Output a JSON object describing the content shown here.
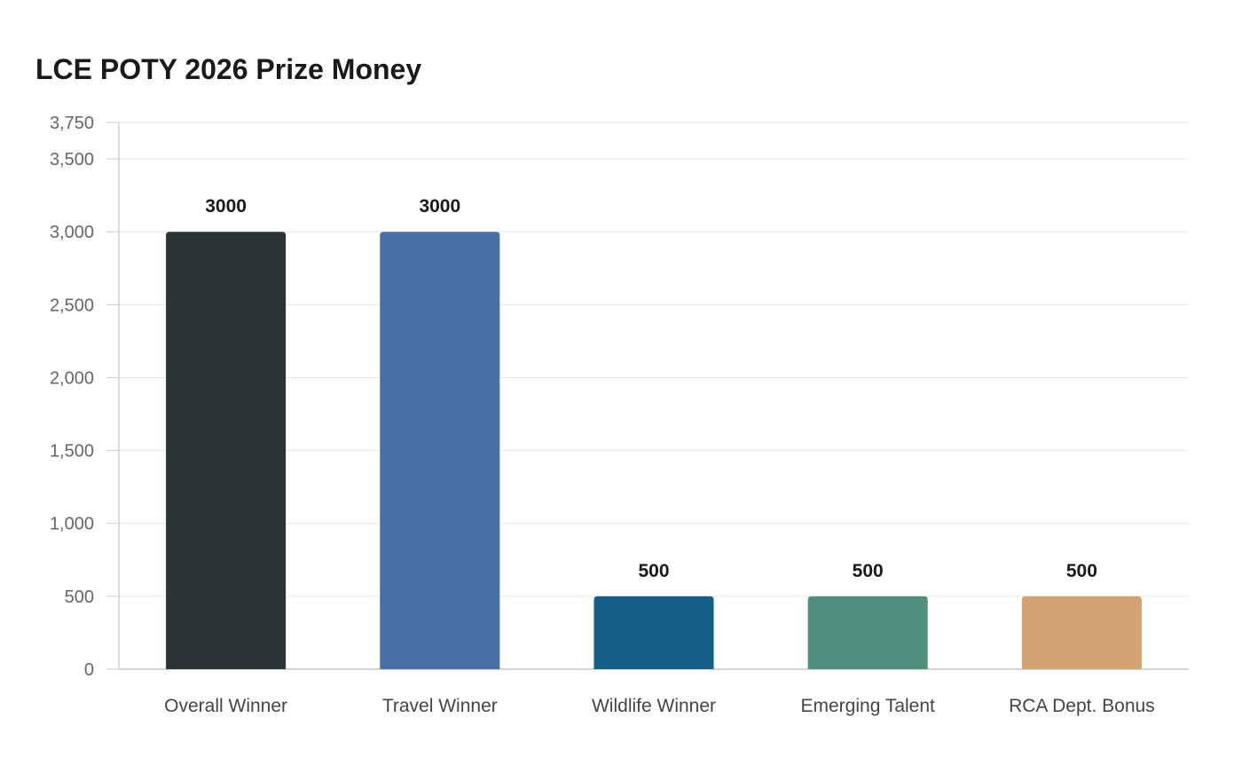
{
  "chart_data": {
    "type": "bar",
    "title": "LCE POTY 2026 Prize Money",
    "xlabel": "",
    "ylabel": "",
    "categories": [
      "Overall Winner",
      "Travel Winner",
      "Wildlife Winner",
      "Emerging Talent",
      "RCA Dept. Bonus"
    ],
    "values": [
      3000,
      3000,
      500,
      500,
      500
    ],
    "data_labels": [
      "3000",
      "3000",
      "500",
      "500",
      "500"
    ],
    "bar_colors": [
      "#2d3436",
      "#4a6fa5",
      "#166088",
      "#4f8f7c",
      "#d4a373"
    ],
    "yticks": [
      0,
      500,
      1000,
      1500,
      2000,
      2500,
      3000,
      3500,
      3750
    ],
    "ytick_labels": [
      "0",
      "500",
      "1,000",
      "1,500",
      "2,000",
      "2,500",
      "3,000",
      "3,500",
      "3,750"
    ],
    "ylim": [
      0,
      3750
    ],
    "grid": true,
    "legend": "none"
  }
}
